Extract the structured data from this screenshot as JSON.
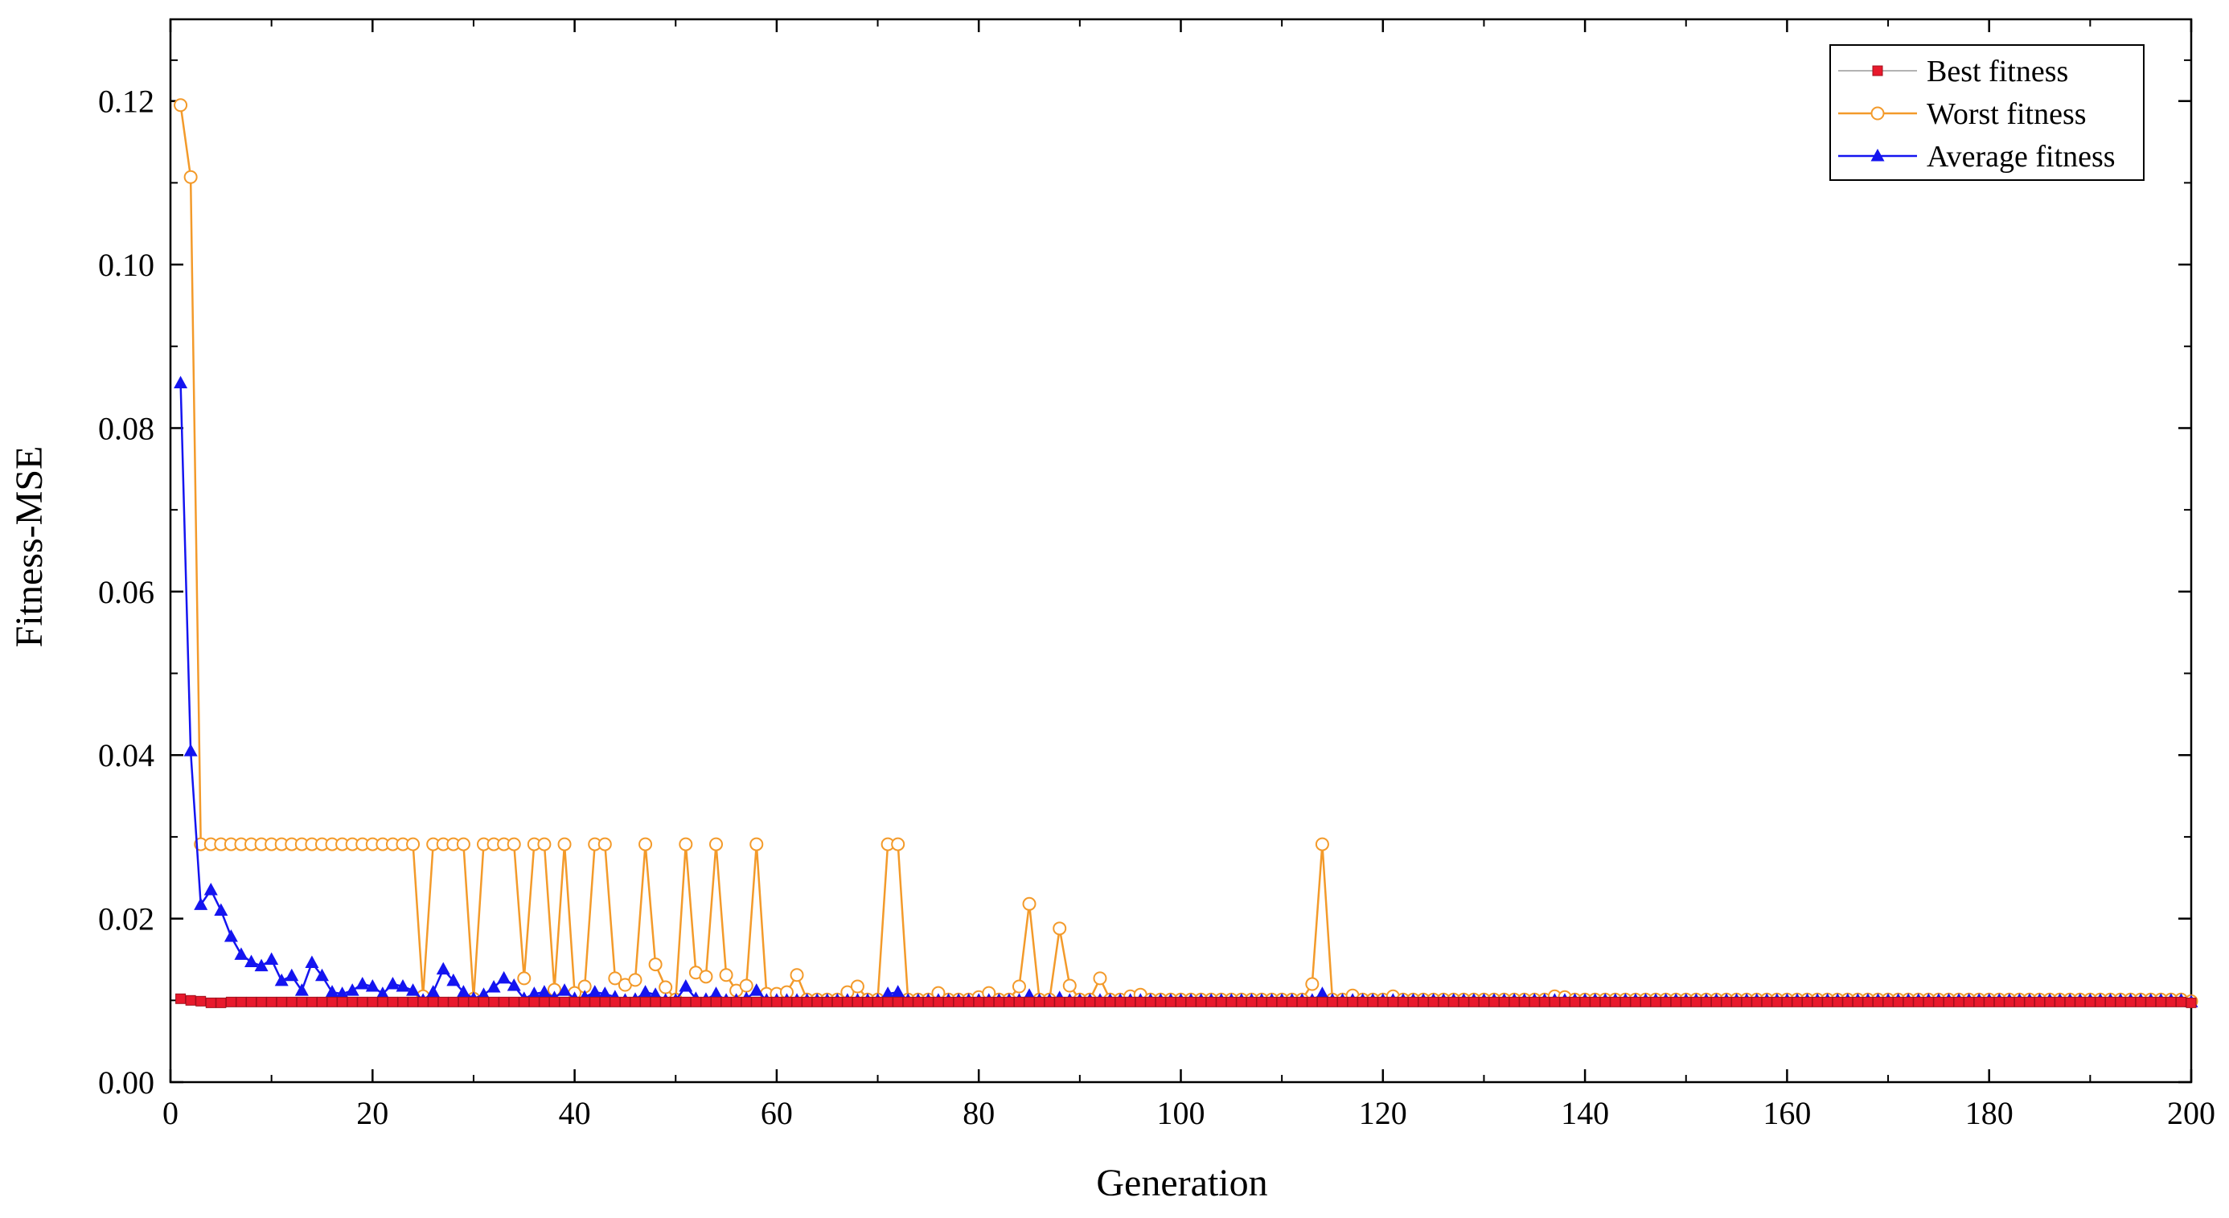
{
  "chart_data": {
    "type": "line",
    "title": "",
    "xlabel": "Generation",
    "ylabel": "Fitness-MSE",
    "xlim": [
      0,
      200
    ],
    "ylim": [
      0,
      0.13
    ],
    "x_ticks": [
      0,
      20,
      40,
      60,
      80,
      100,
      120,
      140,
      160,
      180,
      200
    ],
    "x_tick_labels": [
      "0",
      "20",
      "40",
      "60",
      "80",
      "100",
      "120",
      "140",
      "160",
      "180",
      "200"
    ],
    "y_ticks": [
      0,
      0.02,
      0.04,
      0.06,
      0.08,
      0.1,
      0.12
    ],
    "y_tick_labels": [
      "0.00",
      "0.02",
      "0.04",
      "0.06",
      "0.08",
      "0.10",
      "0.12"
    ],
    "grid": false,
    "legend_position": "top-right",
    "x_start": 1,
    "x_end": 200,
    "series": [
      {
        "name": "Best fitness",
        "color": "#e8192c",
        "line_color": "#9a9a9a",
        "marker": "square",
        "overrides": [
          [
            1,
            0.0102
          ],
          [
            2,
            0.01
          ],
          [
            3,
            0.0099
          ],
          [
            4,
            0.0097
          ],
          [
            5,
            0.0097
          ],
          [
            6,
            0.0098
          ],
          [
            7,
            0.0098
          ],
          [
            8,
            0.0098
          ],
          [
            9,
            0.0098
          ],
          [
            10,
            0.0098
          ]
        ],
        "default": 0.0098,
        "end_value": 0.0097
      },
      {
        "name": "Worst fitness",
        "color": "#f39a2a",
        "marker": "open-circle",
        "overrides": [
          [
            1,
            0.1195
          ],
          [
            2,
            0.1107
          ],
          [
            3,
            0.0291
          ],
          [
            25,
            0.0105
          ],
          [
            30,
            0.0102
          ],
          [
            35,
            0.0127
          ],
          [
            38,
            0.0113
          ],
          [
            40,
            0.0109
          ],
          [
            41,
            0.0117
          ],
          [
            44,
            0.0127
          ],
          [
            45,
            0.0119
          ],
          [
            46,
            0.0125
          ],
          [
            48,
            0.0144
          ],
          [
            49,
            0.0116
          ],
          [
            52,
            0.0134
          ],
          [
            53,
            0.0129
          ],
          [
            55,
            0.0131
          ],
          [
            56,
            0.0112
          ],
          [
            57,
            0.0118
          ],
          [
            59,
            0.0108
          ],
          [
            60,
            0.0108
          ],
          [
            61,
            0.011
          ],
          [
            62,
            0.0131
          ],
          [
            67,
            0.011
          ],
          [
            68,
            0.0117
          ],
          [
            76,
            0.0109
          ],
          [
            80,
            0.0104
          ],
          [
            81,
            0.0109
          ],
          [
            84,
            0.0117
          ],
          [
            85,
            0.0218
          ],
          [
            86,
            0.0101
          ],
          [
            88,
            0.0188
          ],
          [
            89,
            0.0118
          ],
          [
            92,
            0.0127
          ],
          [
            95,
            0.0105
          ],
          [
            96,
            0.0107
          ],
          [
            113,
            0.012
          ],
          [
            114,
            0.0291
          ],
          [
            117,
            0.0106
          ],
          [
            121,
            0.0105
          ],
          [
            137,
            0.0105
          ],
          [
            138,
            0.0104
          ]
        ],
        "worst_plateau_values": {
          "start": 4,
          "end": 24,
          "value": 0.0291
        },
        "worst_spikes": [
          26,
          27,
          28,
          29,
          31,
          32,
          33,
          34,
          36,
          37,
          39,
          42,
          43,
          47,
          51,
          54,
          58,
          71,
          72
        ],
        "default": 0.0101,
        "end_value": 0.0099
      },
      {
        "name": "Average fitness",
        "color": "#1414f0",
        "marker": "filled-triangle",
        "overrides": [
          [
            1,
            0.0855
          ],
          [
            2,
            0.0405
          ],
          [
            3,
            0.0217
          ],
          [
            4,
            0.0235
          ],
          [
            5,
            0.021
          ],
          [
            6,
            0.0178
          ],
          [
            7,
            0.0156
          ],
          [
            8,
            0.0147
          ],
          [
            9,
            0.0142
          ],
          [
            10,
            0.015
          ],
          [
            11,
            0.0124
          ],
          [
            12,
            0.013
          ],
          [
            13,
            0.0112
          ],
          [
            14,
            0.0146
          ],
          [
            15,
            0.013
          ],
          [
            16,
            0.011
          ],
          [
            17,
            0.0108
          ],
          [
            18,
            0.0112
          ],
          [
            19,
            0.012
          ],
          [
            20,
            0.0117
          ],
          [
            21,
            0.0108
          ],
          [
            22,
            0.012
          ],
          [
            23,
            0.0117
          ],
          [
            24,
            0.0112
          ],
          [
            25,
            0.01
          ],
          [
            26,
            0.011
          ],
          [
            27,
            0.0138
          ],
          [
            28,
            0.0124
          ],
          [
            29,
            0.011
          ],
          [
            30,
            0.0102
          ],
          [
            31,
            0.0107
          ],
          [
            32,
            0.0116
          ],
          [
            33,
            0.0127
          ],
          [
            34,
            0.0118
          ],
          [
            35,
            0.0102
          ],
          [
            36,
            0.0108
          ],
          [
            37,
            0.011
          ],
          [
            38,
            0.0103
          ],
          [
            39,
            0.0112
          ],
          [
            40,
            0.0102
          ],
          [
            41,
            0.0104
          ],
          [
            42,
            0.011
          ],
          [
            43,
            0.0108
          ],
          [
            44,
            0.0104
          ],
          [
            45,
            0.01
          ],
          [
            46,
            0.0101
          ],
          [
            47,
            0.011
          ],
          [
            48,
            0.0107
          ],
          [
            49,
            0.01
          ],
          [
            50,
            0.01
          ],
          [
            51,
            0.0117
          ],
          [
            52,
            0.0102
          ],
          [
            53,
            0.0101
          ],
          [
            54,
            0.0108
          ],
          [
            55,
            0.01
          ],
          [
            56,
            0.01
          ],
          [
            57,
            0.0102
          ],
          [
            58,
            0.0112
          ],
          [
            71,
            0.0108
          ],
          [
            72,
            0.011
          ],
          [
            85,
            0.0106
          ],
          [
            88,
            0.0103
          ],
          [
            114,
            0.0108
          ]
        ],
        "default": 0.01,
        "end_value": 0.0098
      }
    ]
  }
}
